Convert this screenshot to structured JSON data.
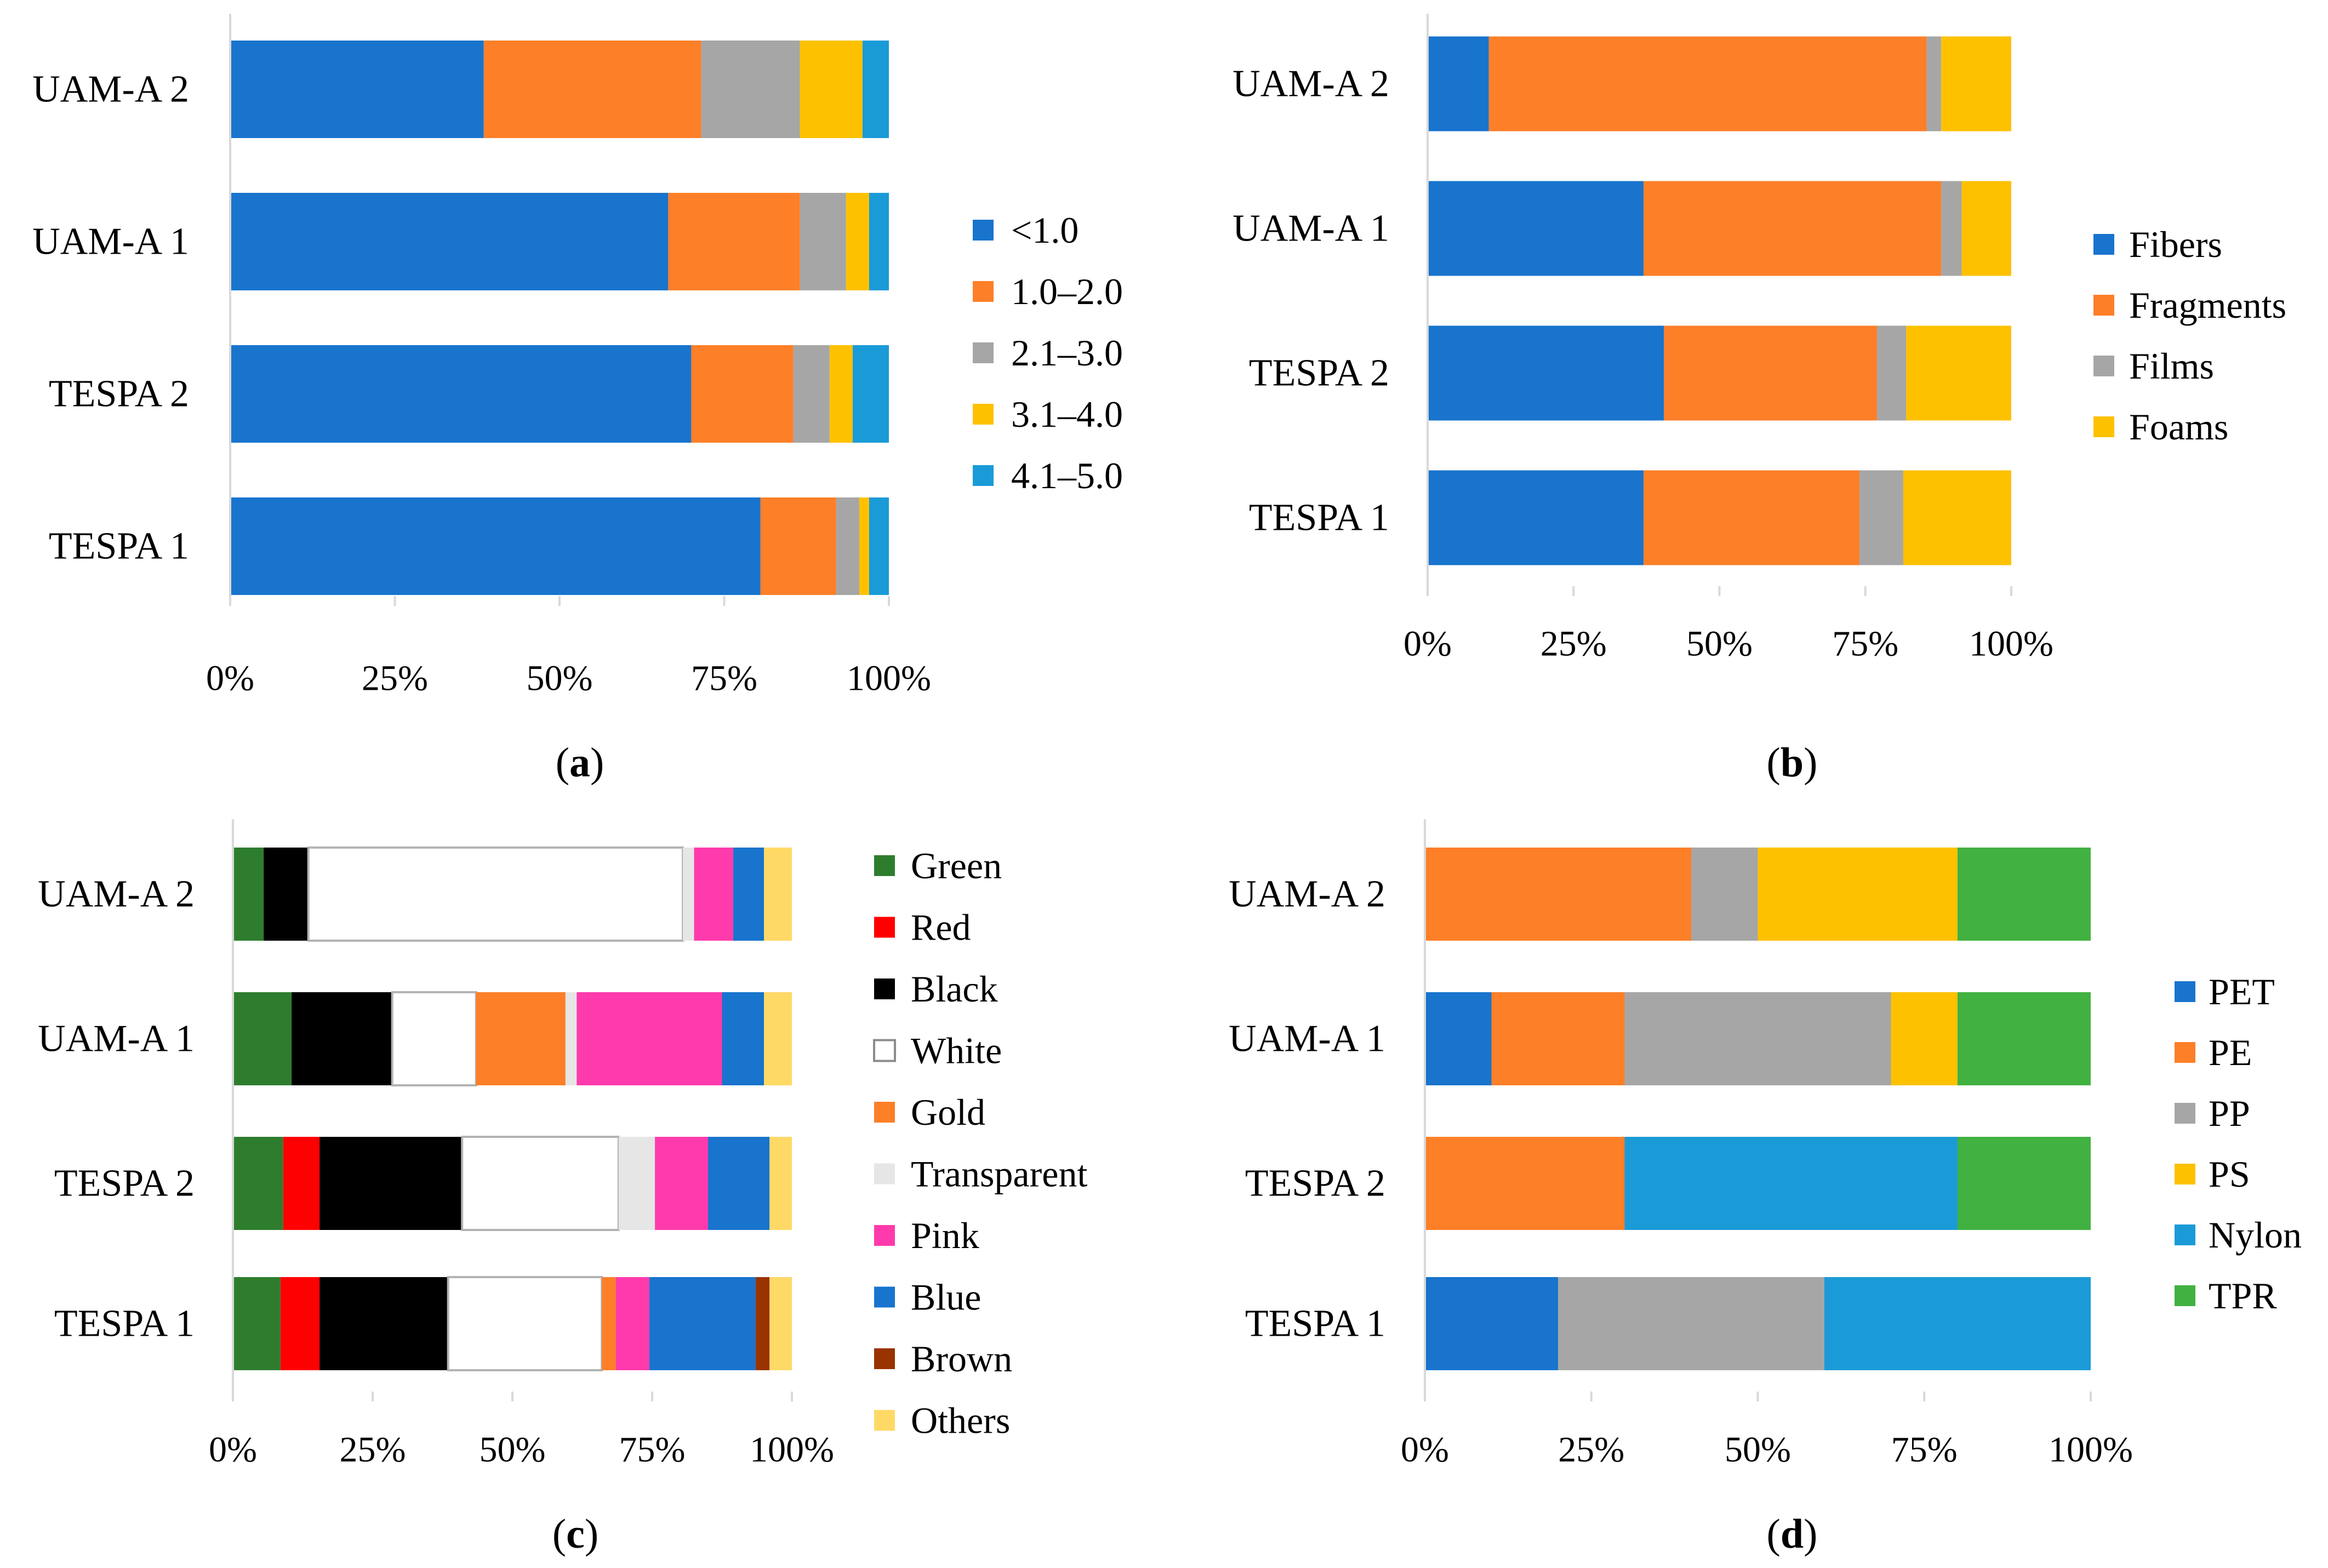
{
  "figure": {
    "panels": [
      "a",
      "b",
      "c",
      "d"
    ]
  },
  "chart_data": [
    {
      "panel": "a",
      "panel_label": "a",
      "type": "bar",
      "orientation": "horizontal",
      "stacked": "percent",
      "categories": [
        "UAM-A 2",
        "UAM-A 1",
        "TESPA 2",
        "TESPA 1"
      ],
      "xlim": [
        0,
        100
      ],
      "xticks": [
        "0%",
        "25%",
        "50%",
        "75%",
        "100%"
      ],
      "legend_position": "right",
      "series": [
        {
          "name": "<1.0",
          "color": "#1874cd",
          "values": [
            38.5,
            66.5,
            70.0,
            80.5
          ]
        },
        {
          "name": "1.0–2.0",
          "color": "#fd7f28",
          "values": [
            33.0,
            20.0,
            15.5,
            11.5
          ]
        },
        {
          "name": "2.1–3.0",
          "color": "#a6a6a6",
          "values": [
            15.0,
            7.0,
            5.5,
            3.5
          ]
        },
        {
          "name": "3.1–4.0",
          "color": "#fec100",
          "values": [
            9.5,
            3.5,
            3.5,
            1.5
          ]
        },
        {
          "name": "4.1–5.0",
          "color": "#1a9bd7",
          "values": [
            4.0,
            3.0,
            5.5,
            3.0
          ]
        }
      ]
    },
    {
      "panel": "b",
      "panel_label": "b",
      "type": "bar",
      "orientation": "horizontal",
      "stacked": "percent",
      "categories": [
        "UAM-A 2",
        "UAM-A 1",
        "TESPA 2",
        "TESPA 1"
      ],
      "xlim": [
        0,
        100
      ],
      "xticks": [
        "0%",
        "25%",
        "50%",
        "75%",
        "100%"
      ],
      "legend_position": "right",
      "series": [
        {
          "name": "Fibers",
          "color": "#1874cd",
          "values": [
            10.5,
            37.0,
            40.5,
            37.0
          ]
        },
        {
          "name": "Fragments",
          "color": "#fd7f28",
          "values": [
            75.0,
            51.0,
            36.5,
            37.0
          ]
        },
        {
          "name": "Films",
          "color": "#a6a6a6",
          "values": [
            2.5,
            3.5,
            5.0,
            7.5
          ]
        },
        {
          "name": "Foams",
          "color": "#fec100",
          "values": [
            12.0,
            8.5,
            18.0,
            18.5
          ]
        }
      ]
    },
    {
      "panel": "c",
      "panel_label": "c",
      "type": "bar",
      "orientation": "horizontal",
      "stacked": "percent",
      "categories": [
        "UAM-A 2",
        "UAM-A 1",
        "TESPA 2",
        "TESPA 1"
      ],
      "xlim": [
        0,
        100
      ],
      "xticks": [
        "0%",
        "25%",
        "50%",
        "75%",
        "100%"
      ],
      "legend_position": "right",
      "series": [
        {
          "name": "Green",
          "color": "#2e7d2e",
          "values": [
            5.5,
            10.5,
            9.0,
            8.5
          ]
        },
        {
          "name": "Red",
          "color": "#ff0000",
          "values": [
            0,
            0,
            6.5,
            7.0
          ]
        },
        {
          "name": "Black",
          "color": "#000000",
          "values": [
            8.0,
            18.0,
            25.5,
            23.0
          ]
        },
        {
          "name": "White",
          "color": "#ffffff",
          "values": [
            67.0,
            15.0,
            28.0,
            27.5
          ]
        },
        {
          "name": "Gold",
          "color": "#fd7f28",
          "values": [
            0,
            16.0,
            0,
            2.5
          ]
        },
        {
          "name": "Transparent",
          "color": "#e6e6e6",
          "values": [
            2.0,
            2.0,
            6.5,
            0
          ]
        },
        {
          "name": "Pink",
          "color": "#ff3aac",
          "values": [
            7.0,
            26.0,
            9.5,
            6.0
          ]
        },
        {
          "name": "Blue",
          "color": "#1874cd",
          "values": [
            5.5,
            7.5,
            11.0,
            19.0
          ]
        },
        {
          "name": "Brown",
          "color": "#993300",
          "values": [
            0,
            0,
            0,
            2.5
          ]
        },
        {
          "name": "Others",
          "color": "#ffd966",
          "values": [
            5.0,
            5.0,
            4.0,
            4.0
          ]
        }
      ]
    },
    {
      "panel": "d",
      "panel_label": "d",
      "type": "bar",
      "orientation": "horizontal",
      "stacked": "percent",
      "categories": [
        "UAM-A 2",
        "UAM-A 1",
        "TESPA 2",
        "TESPA 1"
      ],
      "xlim": [
        0,
        100
      ],
      "xticks": [
        "0%",
        "25%",
        "50%",
        "75%",
        "100%"
      ],
      "legend_position": "right",
      "series": [
        {
          "name": "PET",
          "color": "#1874cd",
          "values": [
            0,
            10,
            0,
            20
          ]
        },
        {
          "name": "PE",
          "color": "#fd7f28",
          "values": [
            40,
            20,
            30,
            0
          ]
        },
        {
          "name": "PP",
          "color": "#a6a6a6",
          "values": [
            10,
            40,
            0,
            40
          ]
        },
        {
          "name": "PS",
          "color": "#fec100",
          "values": [
            30,
            10,
            0,
            0
          ]
        },
        {
          "name": "Nylon",
          "color": "#1a9bd7",
          "values": [
            0,
            0,
            50,
            40
          ]
        },
        {
          "name": "TPR",
          "color": "#41b141",
          "values": [
            20,
            20,
            20,
            0
          ]
        }
      ]
    }
  ]
}
